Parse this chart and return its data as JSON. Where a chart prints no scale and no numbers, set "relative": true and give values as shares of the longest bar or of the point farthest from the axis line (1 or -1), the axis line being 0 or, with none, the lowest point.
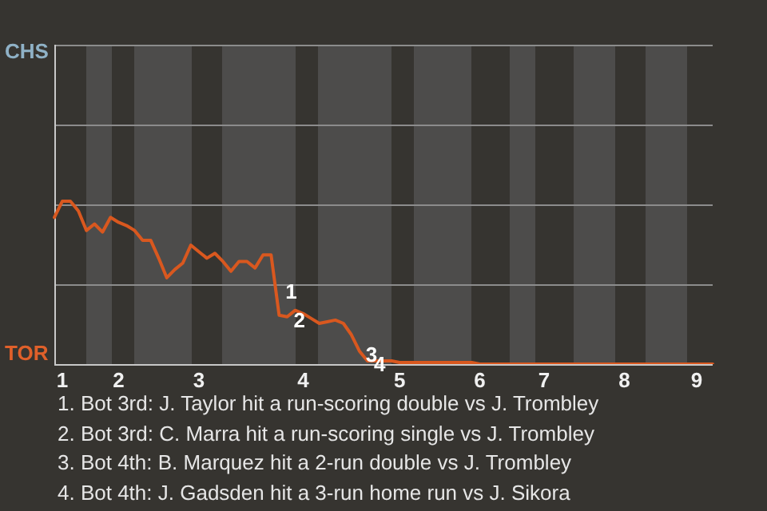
{
  "chart_data": {
    "type": "line",
    "relative": true,
    "categories": [
      null,
      "1",
      null,
      null,
      null,
      null,
      null,
      null,
      "2",
      null,
      null,
      null,
      null,
      null,
      null,
      null,
      null,
      null,
      "3",
      null,
      null,
      null,
      null,
      null,
      null,
      null,
      null,
      null,
      null,
      null,
      null,
      "4",
      null,
      null,
      null,
      null,
      null,
      null,
      null,
      null,
      null,
      null,
      null,
      "5",
      null,
      null,
      null,
      null,
      null,
      null,
      null,
      null,
      null,
      "6",
      null,
      null,
      null,
      null,
      null,
      null,
      null,
      "7",
      null,
      null,
      null,
      null,
      null,
      null,
      null,
      null,
      null,
      "8",
      null,
      null,
      null,
      null,
      null,
      null,
      null,
      null,
      "9",
      null,
      null
    ],
    "ref_lines": [
      {
        "axis": "y",
        "value": 0.49,
        "color": "#8c8c8c"
      },
      {
        "axis": "y",
        "value": 0.98,
        "color": "#8c8c8c"
      },
      {
        "axis": "y",
        "value": 1.47,
        "color": "#8c8c8c"
      }
    ],
    "legend": false,
    "marker": "none",
    "line_style": "solid",
    "series": [
      {
        "color": "#d9581f",
        "values": [
          0.9,
          1,
          1,
          0.94,
          0.82,
          0.86,
          0.81,
          0.9,
          0.87,
          0.85,
          0.82,
          0.76,
          0.76,
          0.65,
          0.53,
          0.58,
          0.62,
          0.73,
          0.69,
          0.65,
          0.68,
          0.63,
          0.57,
          0.63,
          0.63,
          0.59,
          0.67,
          0.67,
          0.3,
          0.29,
          0.33,
          0.31,
          0.28,
          0.25,
          0.26,
          0.27,
          0.25,
          0.18,
          0.08,
          0.02,
          0.02,
          0.02,
          0.02,
          0.01,
          0.01,
          0.01,
          0.01,
          0.01,
          0.01,
          0.01,
          0.01,
          0.01,
          0.01,
          0,
          0,
          0,
          0,
          0,
          0,
          0,
          0,
          0,
          0,
          0,
          0,
          0,
          0,
          0,
          0,
          0,
          0,
          0,
          0,
          0,
          0,
          0,
          0,
          0,
          0,
          0,
          0,
          0,
          0
        ]
      }
    ],
    "annotations": [
      "CHS",
      "TOR",
      {
        "text": "1",
        "y": 0.3
      },
      {
        "text": "2",
        "y": 0.29
      },
      {
        "text": "3",
        "y": 0.08
      },
      {
        "text": "4",
        "y": 0.02
      },
      "1. Bot 3rd: J. Taylor hit a run-scoring double vs J. Trombley",
      "2. Bot 3rd: C. Marra hit a run-scoring single vs J. Trombley",
      "3. Bot 4th: B. Marquez hit a 2-run double vs J. Trombley",
      "4. Bot 4th: J. Gadsden hit a 3-run home run vs J. Sikora"
    ]
  }
}
